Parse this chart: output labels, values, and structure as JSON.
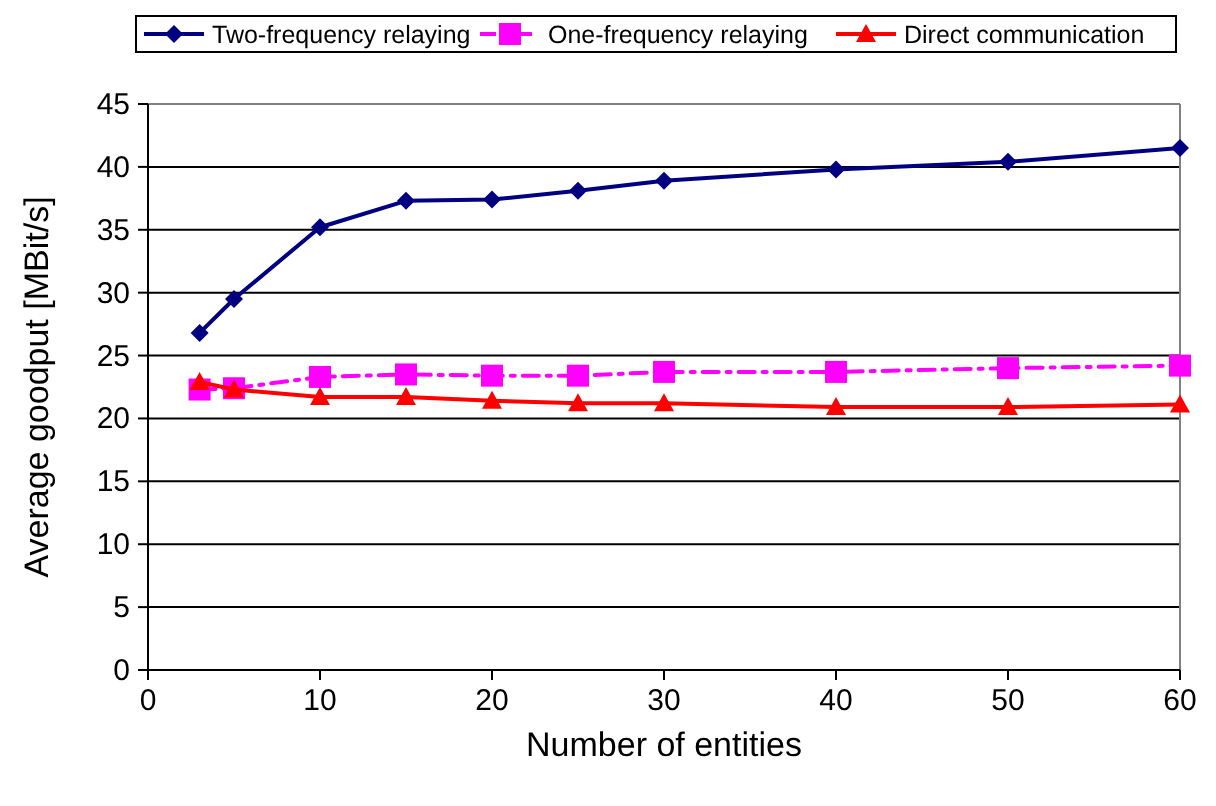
{
  "chart_data": {
    "type": "line",
    "xlabel": "Number of entities",
    "ylabel": "Average goodput [MBit/s]",
    "x": [
      3,
      5,
      10,
      15,
      20,
      25,
      30,
      40,
      50,
      60
    ],
    "series": [
      {
        "name": "Two-frequency relaying",
        "color": "#000080",
        "marker": "diamond",
        "line_style": "solid",
        "values": [
          26.8,
          29.5,
          35.2,
          37.3,
          37.4,
          38.1,
          38.9,
          39.8,
          40.4,
          41.5
        ]
      },
      {
        "name": "One-frequency relaying",
        "color": "#ff00ff",
        "marker": "square",
        "line_style": "dashed",
        "values": [
          22.3,
          22.4,
          23.3,
          23.5,
          23.4,
          23.4,
          23.7,
          23.7,
          24.0,
          24.2
        ]
      },
      {
        "name": "Direct communication",
        "color": "#ff0000",
        "marker": "triangle",
        "line_style": "solid",
        "values": [
          22.9,
          22.3,
          21.7,
          21.7,
          21.4,
          21.2,
          21.2,
          20.9,
          20.9,
          21.1
        ]
      }
    ],
    "xlim": [
      0,
      60
    ],
    "xticks": [
      0,
      10,
      20,
      30,
      40,
      50,
      60
    ],
    "ylim": [
      0,
      45
    ],
    "yticks": [
      0,
      5,
      10,
      15,
      20,
      25,
      30,
      35,
      40,
      45
    ],
    "grid": "y",
    "legend": "top"
  }
}
